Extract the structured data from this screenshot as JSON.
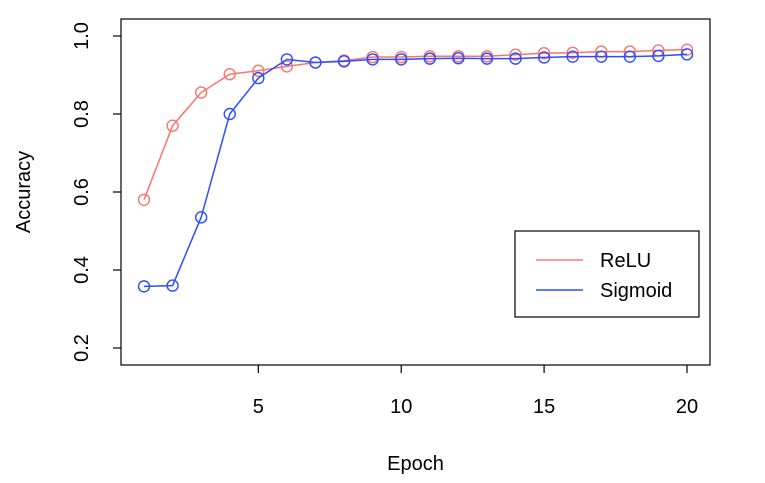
{
  "chart_data": {
    "type": "line",
    "title": "",
    "xlabel": "Epoch",
    "ylabel": "Accuracy",
    "xlim": [
      1,
      20
    ],
    "ylim": [
      0.2,
      1.0
    ],
    "x_ticks": [
      5,
      10,
      15,
      20
    ],
    "y_ticks": [
      0.2,
      0.4,
      0.6,
      0.8,
      1.0
    ],
    "x_tick_labels": [
      "5",
      "10",
      "15",
      "20"
    ],
    "y_tick_labels": [
      "0.2",
      "0.4",
      "0.6",
      "0.8",
      "1.0"
    ],
    "grid": false,
    "legend_position": "lower-right",
    "x": [
      1,
      2,
      3,
      4,
      5,
      6,
      7,
      8,
      9,
      10,
      11,
      12,
      13,
      14,
      15,
      16,
      17,
      18,
      19,
      20
    ],
    "series": [
      {
        "name": "ReLU",
        "color": "#F8766D",
        "marker": "open-circle",
        "values": [
          0.58,
          0.77,
          0.855,
          0.902,
          0.911,
          0.922,
          0.932,
          0.937,
          0.946,
          0.946,
          0.948,
          0.948,
          0.948,
          0.952,
          0.956,
          0.957,
          0.96,
          0.96,
          0.963,
          0.965
        ]
      },
      {
        "name": "Sigmoid",
        "color": "#2E4DFF",
        "marker": "open-circle",
        "values": [
          0.358,
          0.36,
          0.535,
          0.8,
          0.892,
          0.94,
          0.932,
          0.935,
          0.94,
          0.94,
          0.942,
          0.943,
          0.942,
          0.942,
          0.945,
          0.947,
          0.947,
          0.947,
          0.949,
          0.953
        ]
      }
    ]
  }
}
